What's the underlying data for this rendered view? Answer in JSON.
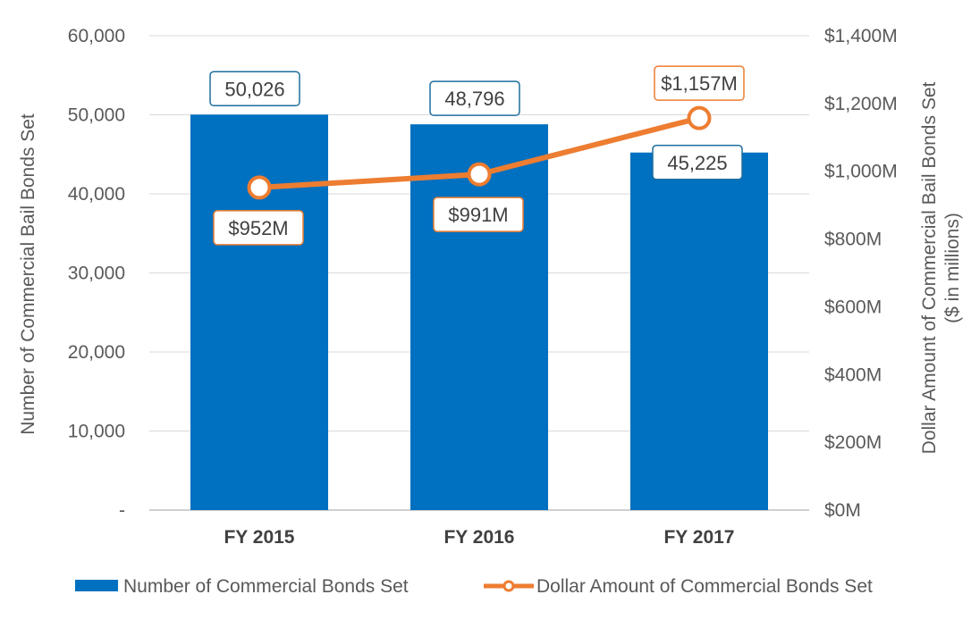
{
  "chart_data": {
    "type": "bar",
    "categories": [
      "FY 2015",
      "FY 2016",
      "FY 2017"
    ],
    "series": [
      {
        "name": "Number of Commercial Bonds Set",
        "type": "bar",
        "axis": "left",
        "color": "#0070c0",
        "values": [
          50026,
          48796,
          45225
        ],
        "labels": [
          "50,026",
          "48,796",
          "45,225"
        ]
      },
      {
        "name": "Dollar Amount of Commercial Bonds Set",
        "type": "line",
        "axis": "right",
        "color": "#ed7d31",
        "values": [
          952,
          991,
          1157
        ],
        "labels": [
          "$952M",
          "$991M",
          "$1,157M"
        ]
      }
    ],
    "y_left": {
      "label": "Number of Commercial Bail Bonds Set",
      "ylim": [
        0,
        60000
      ],
      "ticks": [
        0,
        10000,
        20000,
        30000,
        40000,
        50000,
        60000
      ],
      "tick_labels": [
        "-",
        "10,000",
        "20,000",
        "30,000",
        "40,000",
        "50,000",
        "60,000"
      ]
    },
    "y_right": {
      "label": "Dollar Amount of Commercial Bail Bonds Set",
      "label_line2": "($ in millions)",
      "ylim": [
        0,
        1400
      ],
      "ticks": [
        0,
        200,
        400,
        600,
        800,
        1000,
        1200,
        1400
      ],
      "tick_labels": [
        "$0M",
        "$200M",
        "$400M",
        "$600M",
        "$800M",
        "$1,000M",
        "$1,200M",
        "$1,400M"
      ]
    },
    "grid": true,
    "legend_position": "bottom"
  }
}
